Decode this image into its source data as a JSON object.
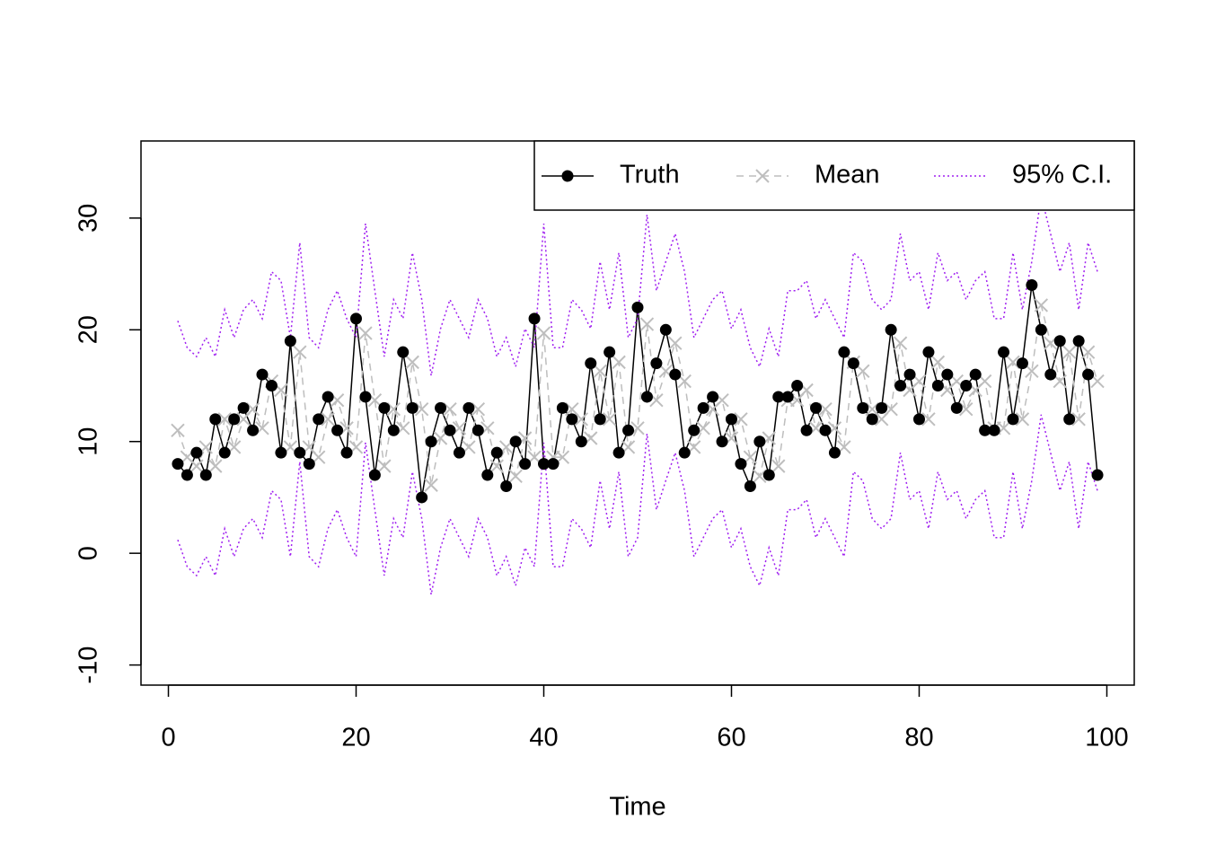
{
  "chart_data": {
    "type": "line",
    "x_label": "Time",
    "x": [
      1,
      2,
      3,
      4,
      5,
      6,
      7,
      8,
      9,
      10,
      11,
      12,
      13,
      14,
      15,
      16,
      17,
      18,
      19,
      20,
      21,
      22,
      23,
      24,
      25,
      26,
      27,
      28,
      29,
      30,
      31,
      32,
      33,
      34,
      35,
      36,
      37,
      38,
      39,
      40,
      41,
      42,
      43,
      44,
      45,
      46,
      47,
      48,
      49,
      50,
      51,
      52,
      53,
      54,
      55,
      56,
      57,
      58,
      59,
      60,
      61,
      62,
      63,
      64,
      65,
      66,
      67,
      68,
      69,
      70,
      71,
      72,
      73,
      74,
      75,
      76,
      77,
      78,
      79,
      80,
      81,
      82,
      83,
      84,
      85,
      86,
      87,
      88,
      89,
      90,
      91,
      92,
      93,
      94,
      95,
      96,
      97,
      98,
      99
    ],
    "series": [
      {
        "name": "Truth",
        "color": "#000000",
        "values": [
          8,
          7,
          9,
          7,
          12,
          9,
          12,
          13,
          11,
          16,
          15,
          9,
          19,
          9,
          8,
          12,
          14,
          11,
          9,
          21,
          14,
          7,
          13,
          11,
          18,
          13,
          5,
          10,
          13,
          11,
          9,
          13,
          11,
          7,
          9,
          6,
          10,
          8,
          21,
          8,
          8,
          13,
          12,
          10,
          17,
          12,
          18,
          9,
          11,
          22,
          14,
          17,
          20,
          16,
          9,
          11,
          13,
          14,
          10,
          12,
          8,
          6,
          10,
          7,
          14,
          14,
          15,
          11,
          13,
          11,
          9,
          18,
          17,
          13,
          12,
          13,
          20,
          15,
          16,
          12,
          18,
          15,
          16,
          13,
          15,
          16,
          11,
          11,
          18,
          12,
          17,
          24,
          20,
          16,
          19,
          12,
          19,
          16,
          7
        ]
      },
      {
        "name": "Mean",
        "color": "#bebebe",
        "values": [
          11,
          8.6,
          7.8,
          9.5,
          7.8,
          12,
          9.5,
          12,
          12.9,
          11.2,
          15.4,
          14.6,
          9.5,
          18,
          9.5,
          8.6,
          12,
          13.7,
          11.2,
          9.5,
          19.7,
          13.7,
          7.8,
          12.9,
          11.2,
          17.1,
          12.9,
          6.1,
          10.3,
          12.9,
          11.2,
          9.5,
          12.9,
          11.2,
          7.8,
          9.5,
          6.9,
          10.3,
          8.6,
          19.7,
          8.6,
          8.6,
          12.9,
          12,
          10.3,
          16.3,
          12,
          17.1,
          9.5,
          11.2,
          20.5,
          13.7,
          16.3,
          18.8,
          15.4,
          9.5,
          11.2,
          12.9,
          13.7,
          10.3,
          12,
          8.6,
          6.9,
          10.3,
          7.8,
          13.7,
          13.7,
          14.6,
          11.2,
          12.9,
          11.2,
          9.5,
          17.1,
          16.3,
          12.9,
          12,
          12.9,
          18.8,
          14.6,
          15.4,
          12,
          17.1,
          14.6,
          15.4,
          12.9,
          14.6,
          15.4,
          11.2,
          11.2,
          17.1,
          12,
          16.3,
          22.2,
          18.8,
          15.4,
          18,
          12,
          18,
          15.4
        ]
      },
      {
        "name": "95% C.I.",
        "color": "#a020f0",
        "upper": [
          20.8,
          18.4,
          17.6,
          19.3,
          17.6,
          21.8,
          19.3,
          21.8,
          22.7,
          21,
          25.2,
          24.4,
          19.3,
          27.8,
          19.3,
          18.4,
          21.8,
          23.5,
          21,
          19.3,
          29.5,
          23.5,
          17.6,
          22.7,
          21,
          26.9,
          22.7,
          15.9,
          20.1,
          22.7,
          21,
          19.3,
          22.7,
          21,
          17.6,
          19.3,
          16.7,
          20.1,
          18.4,
          29.5,
          18.4,
          18.4,
          22.7,
          21.8,
          20.1,
          26.1,
          21.8,
          26.9,
          19.3,
          21,
          30.3,
          23.5,
          26.1,
          28.6,
          25.2,
          19.3,
          21,
          22.7,
          23.5,
          20.1,
          21.8,
          18.4,
          16.7,
          20.1,
          17.6,
          23.5,
          23.5,
          24.4,
          21,
          22.7,
          21,
          19.3,
          26.9,
          26.1,
          22.7,
          21.8,
          22.7,
          28.6,
          24.4,
          25.2,
          21.8,
          26.9,
          24.4,
          25.2,
          22.7,
          24.4,
          25.2,
          21,
          21,
          26.9,
          21.8,
          26.1,
          32,
          28.6,
          25.2,
          27.8,
          21.8,
          27.8,
          25.2
        ],
        "lower": [
          1.2,
          -1.2,
          -2,
          -0.3,
          -2,
          2.2,
          -0.3,
          2.2,
          3.1,
          1.4,
          5.6,
          4.8,
          -0.3,
          8.2,
          -0.3,
          -1.2,
          2.2,
          3.9,
          1.4,
          -0.3,
          9.9,
          3.9,
          -2,
          3.1,
          1.4,
          7.3,
          3.1,
          -3.7,
          0.5,
          3.1,
          1.4,
          -0.3,
          3.1,
          1.4,
          -2,
          -0.3,
          -2.9,
          0.5,
          -1.2,
          9.9,
          -1.2,
          -1.2,
          3.1,
          2.2,
          0.5,
          6.5,
          2.2,
          7.3,
          -0.3,
          1.4,
          10.7,
          3.9,
          6.5,
          9,
          5.6,
          -0.3,
          1.4,
          3.1,
          3.9,
          0.5,
          2.2,
          -1.2,
          -2.9,
          0.5,
          -2,
          3.9,
          3.9,
          4.8,
          1.4,
          3.1,
          1.4,
          -0.3,
          7.3,
          6.5,
          3.1,
          2.2,
          3.1,
          9,
          4.8,
          5.6,
          2.2,
          7.3,
          4.8,
          5.6,
          3.1,
          4.8,
          5.6,
          1.4,
          1.4,
          7.3,
          2.2,
          6.5,
          12.4,
          9,
          5.6,
          8.2,
          2.2,
          8.2,
          5.6
        ]
      }
    ],
    "xlim": [
      -2.92,
      102.92
    ],
    "ylim": [
      -11.8,
      36.9
    ],
    "xticks": [
      0,
      20,
      40,
      60,
      80,
      100
    ],
    "yticks": [
      -10,
      0,
      10,
      20,
      30
    ],
    "legend": "top-right"
  }
}
